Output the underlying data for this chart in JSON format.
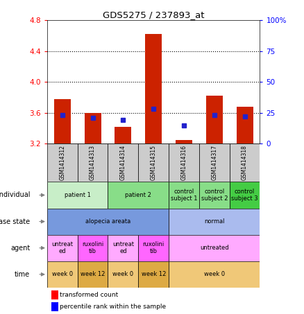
{
  "title": "GDS5275 / 237893_at",
  "samples": [
    "GSM1414312",
    "GSM1414313",
    "GSM1414314",
    "GSM1414315",
    "GSM1414316",
    "GSM1414317",
    "GSM1414318"
  ],
  "bar_heights": [
    3.78,
    3.6,
    3.42,
    4.62,
    3.25,
    3.82,
    3.68
  ],
  "bar_base": 3.2,
  "ylim": [
    3.2,
    4.8
  ],
  "yticks_left": [
    3.2,
    3.6,
    4.0,
    4.4,
    4.8
  ],
  "yticks_right": [
    0,
    25,
    50,
    75,
    100
  ],
  "yticks_right_labels": [
    "0",
    "25",
    "50",
    "75",
    "100%"
  ],
  "bar_color": "#cc2200",
  "percentile_color": "#2222cc",
  "percentile_yvals": [
    3.575,
    3.535,
    3.505,
    3.655,
    3.44,
    3.575,
    3.555
  ],
  "individual_cells": [
    {
      "text": "patient 1",
      "cols": [
        0,
        1
      ],
      "color": "#c8eec8"
    },
    {
      "text": "patient 2",
      "cols": [
        2,
        3
      ],
      "color": "#88dd88"
    },
    {
      "text": "control\nsubject 1",
      "cols": [
        4
      ],
      "color": "#88dd88"
    },
    {
      "text": "control\nsubject 2",
      "cols": [
        5
      ],
      "color": "#88dd88"
    },
    {
      "text": "control\nsubject 3",
      "cols": [
        6
      ],
      "color": "#44cc44"
    }
  ],
  "disease_cells": [
    {
      "text": "alopecia areata",
      "cols": [
        0,
        1,
        2,
        3
      ],
      "color": "#7799dd"
    },
    {
      "text": "normal",
      "cols": [
        4,
        5,
        6
      ],
      "color": "#aabbee"
    }
  ],
  "agent_cells": [
    {
      "text": "untreat\ned",
      "cols": [
        0
      ],
      "color": "#ffaaff"
    },
    {
      "text": "ruxolini\ntib",
      "cols": [
        1
      ],
      "color": "#ff66ff"
    },
    {
      "text": "untreat\ned",
      "cols": [
        2
      ],
      "color": "#ffaaff"
    },
    {
      "text": "ruxolini\ntib",
      "cols": [
        3
      ],
      "color": "#ff66ff"
    },
    {
      "text": "untreated",
      "cols": [
        4,
        5,
        6
      ],
      "color": "#ffaaff"
    }
  ],
  "time_cells": [
    {
      "text": "week 0",
      "cols": [
        0
      ],
      "color": "#f0c878"
    },
    {
      "text": "week 12",
      "cols": [
        1
      ],
      "color": "#ddaa44"
    },
    {
      "text": "week 0",
      "cols": [
        2
      ],
      "color": "#f0c878"
    },
    {
      "text": "week 12",
      "cols": [
        3
      ],
      "color": "#ddaa44"
    },
    {
      "text": "week 0",
      "cols": [
        4,
        5,
        6
      ],
      "color": "#f0c878"
    }
  ],
  "n_samples": 7,
  "header_bg": "#cccccc",
  "row_labels": [
    "individual",
    "disease state",
    "agent",
    "time"
  ],
  "fig_width": 4.38,
  "fig_height": 4.53,
  "dpi": 100
}
